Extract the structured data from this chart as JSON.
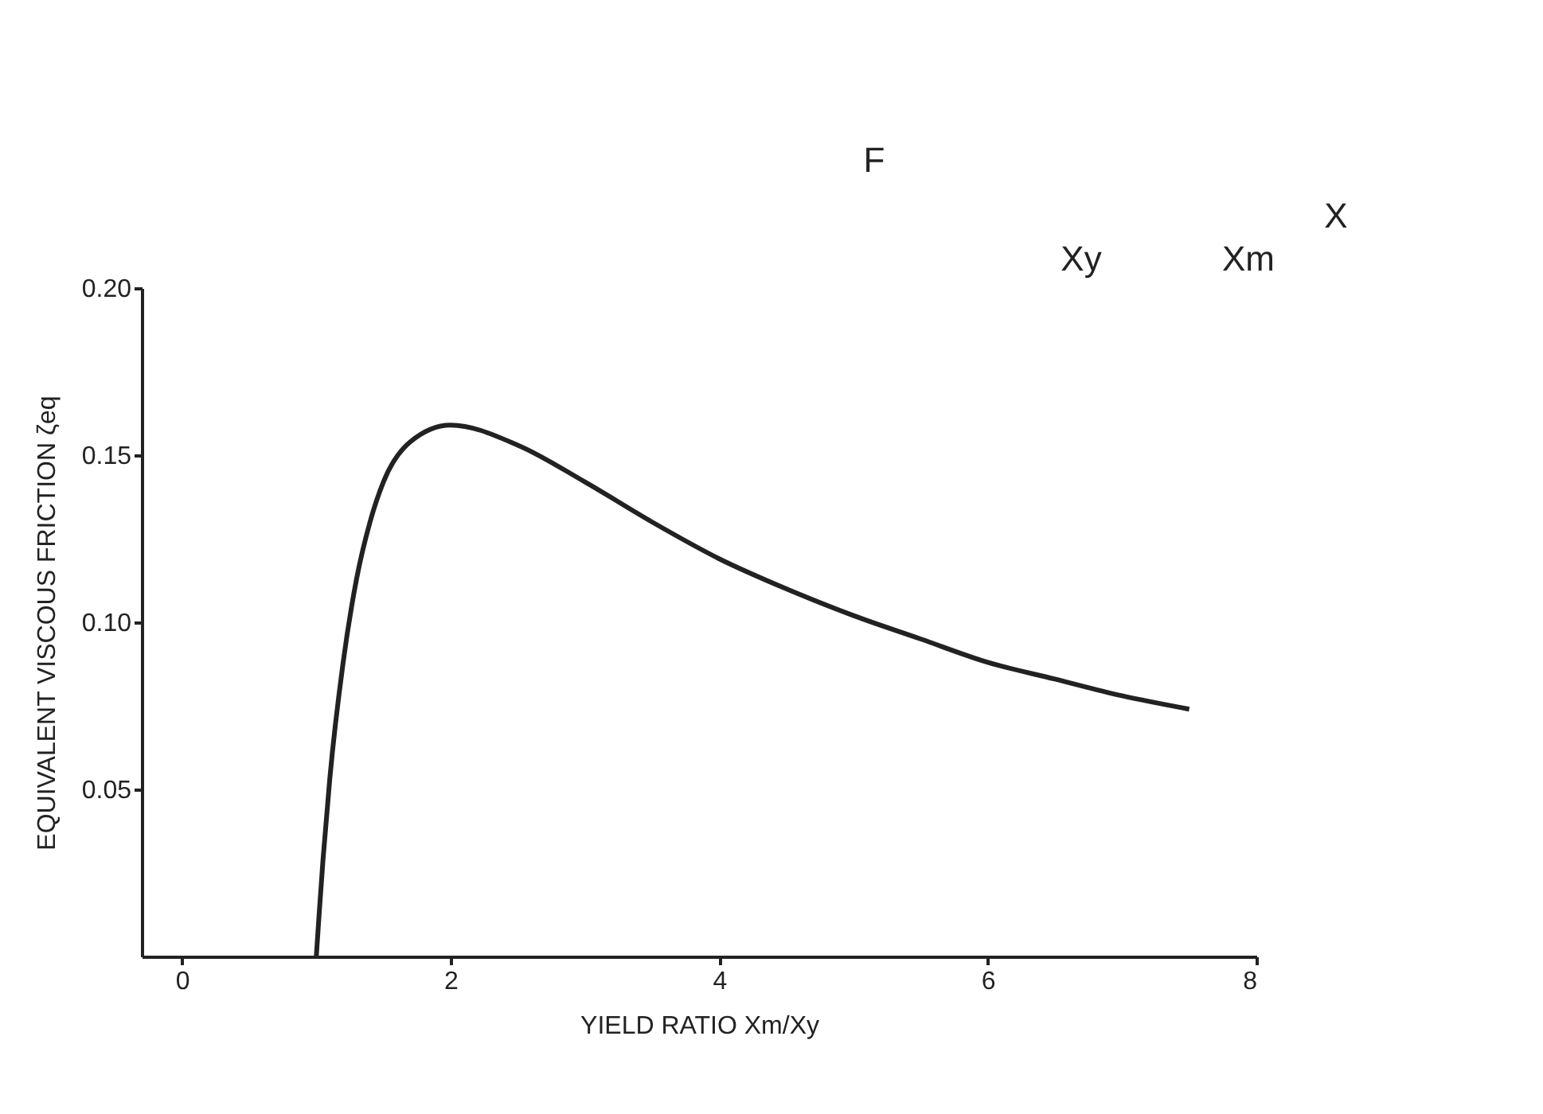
{
  "chart_data": {
    "type": "line",
    "xlabel": "YIELD RATIO  Xm/Xy",
    "ylabel": "EQUIVALENT VISCOUS FRICTION ζeq",
    "x": [
      1.0,
      1.02,
      1.05,
      1.1,
      1.2,
      1.3,
      1.4,
      1.5,
      1.7,
      2.0,
      2.5,
      3.0,
      3.5,
      4.0,
      4.5,
      5.0,
      5.5,
      6.0,
      6.5,
      7.0,
      7.5
    ],
    "series": [
      {
        "color": "#222222",
        "values": [
          0.0,
          0.012,
          0.029,
          0.053,
          0.088,
          0.113,
          0.13,
          0.142,
          0.154,
          0.159,
          0.153,
          0.142,
          0.13,
          0.119,
          0.11,
          0.102,
          0.095,
          0.088,
          0.083,
          0.078,
          0.074
        ]
      }
    ],
    "xlim": [
      -0.3,
      8
    ],
    "xticks": [
      0,
      2,
      4,
      6,
      8
    ],
    "ylim": [
      0,
      0.2
    ],
    "yticks": [
      0.05,
      {
        "value": 0.1,
        "label": "0.10"
      },
      0.15,
      {
        "value": 0.2,
        "label": "0.20"
      }
    ],
    "grid": false,
    "marker": "none",
    "line_style": "solid",
    "annotations": [
      "F",
      "X",
      "Xy",
      "Xm"
    ]
  }
}
